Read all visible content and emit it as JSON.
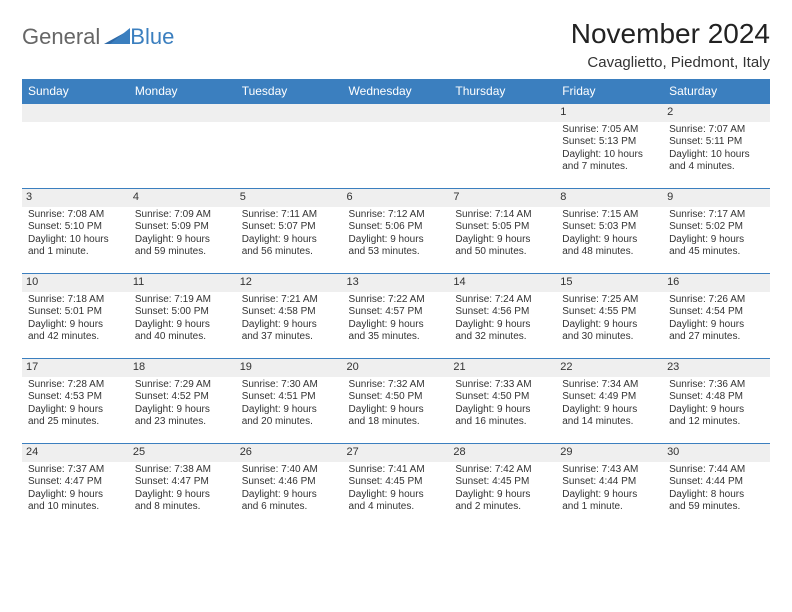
{
  "logo": {
    "text_general": "General",
    "text_blue": "Blue"
  },
  "header": {
    "title": "November 2024",
    "location": "Cavaglietto, Piedmont, Italy"
  },
  "colors": {
    "header_bg": "#3b7fbf",
    "header_text": "#ffffff",
    "daynum_bg": "#efefef",
    "border": "#3b7fbf",
    "text": "#333333",
    "page_bg": "#ffffff"
  },
  "weekdays": [
    "Sunday",
    "Monday",
    "Tuesday",
    "Wednesday",
    "Thursday",
    "Friday",
    "Saturday"
  ],
  "weeks": [
    [
      null,
      null,
      null,
      null,
      null,
      {
        "day": "1",
        "sunrise": "Sunrise: 7:05 AM",
        "sunset": "Sunset: 5:13 PM",
        "daylight1": "Daylight: 10 hours",
        "daylight2": "and 7 minutes."
      },
      {
        "day": "2",
        "sunrise": "Sunrise: 7:07 AM",
        "sunset": "Sunset: 5:11 PM",
        "daylight1": "Daylight: 10 hours",
        "daylight2": "and 4 minutes."
      }
    ],
    [
      {
        "day": "3",
        "sunrise": "Sunrise: 7:08 AM",
        "sunset": "Sunset: 5:10 PM",
        "daylight1": "Daylight: 10 hours",
        "daylight2": "and 1 minute."
      },
      {
        "day": "4",
        "sunrise": "Sunrise: 7:09 AM",
        "sunset": "Sunset: 5:09 PM",
        "daylight1": "Daylight: 9 hours",
        "daylight2": "and 59 minutes."
      },
      {
        "day": "5",
        "sunrise": "Sunrise: 7:11 AM",
        "sunset": "Sunset: 5:07 PM",
        "daylight1": "Daylight: 9 hours",
        "daylight2": "and 56 minutes."
      },
      {
        "day": "6",
        "sunrise": "Sunrise: 7:12 AM",
        "sunset": "Sunset: 5:06 PM",
        "daylight1": "Daylight: 9 hours",
        "daylight2": "and 53 minutes."
      },
      {
        "day": "7",
        "sunrise": "Sunrise: 7:14 AM",
        "sunset": "Sunset: 5:05 PM",
        "daylight1": "Daylight: 9 hours",
        "daylight2": "and 50 minutes."
      },
      {
        "day": "8",
        "sunrise": "Sunrise: 7:15 AM",
        "sunset": "Sunset: 5:03 PM",
        "daylight1": "Daylight: 9 hours",
        "daylight2": "and 48 minutes."
      },
      {
        "day": "9",
        "sunrise": "Sunrise: 7:17 AM",
        "sunset": "Sunset: 5:02 PM",
        "daylight1": "Daylight: 9 hours",
        "daylight2": "and 45 minutes."
      }
    ],
    [
      {
        "day": "10",
        "sunrise": "Sunrise: 7:18 AM",
        "sunset": "Sunset: 5:01 PM",
        "daylight1": "Daylight: 9 hours",
        "daylight2": "and 42 minutes."
      },
      {
        "day": "11",
        "sunrise": "Sunrise: 7:19 AM",
        "sunset": "Sunset: 5:00 PM",
        "daylight1": "Daylight: 9 hours",
        "daylight2": "and 40 minutes."
      },
      {
        "day": "12",
        "sunrise": "Sunrise: 7:21 AM",
        "sunset": "Sunset: 4:58 PM",
        "daylight1": "Daylight: 9 hours",
        "daylight2": "and 37 minutes."
      },
      {
        "day": "13",
        "sunrise": "Sunrise: 7:22 AM",
        "sunset": "Sunset: 4:57 PM",
        "daylight1": "Daylight: 9 hours",
        "daylight2": "and 35 minutes."
      },
      {
        "day": "14",
        "sunrise": "Sunrise: 7:24 AM",
        "sunset": "Sunset: 4:56 PM",
        "daylight1": "Daylight: 9 hours",
        "daylight2": "and 32 minutes."
      },
      {
        "day": "15",
        "sunrise": "Sunrise: 7:25 AM",
        "sunset": "Sunset: 4:55 PM",
        "daylight1": "Daylight: 9 hours",
        "daylight2": "and 30 minutes."
      },
      {
        "day": "16",
        "sunrise": "Sunrise: 7:26 AM",
        "sunset": "Sunset: 4:54 PM",
        "daylight1": "Daylight: 9 hours",
        "daylight2": "and 27 minutes."
      }
    ],
    [
      {
        "day": "17",
        "sunrise": "Sunrise: 7:28 AM",
        "sunset": "Sunset: 4:53 PM",
        "daylight1": "Daylight: 9 hours",
        "daylight2": "and 25 minutes."
      },
      {
        "day": "18",
        "sunrise": "Sunrise: 7:29 AM",
        "sunset": "Sunset: 4:52 PM",
        "daylight1": "Daylight: 9 hours",
        "daylight2": "and 23 minutes."
      },
      {
        "day": "19",
        "sunrise": "Sunrise: 7:30 AM",
        "sunset": "Sunset: 4:51 PM",
        "daylight1": "Daylight: 9 hours",
        "daylight2": "and 20 minutes."
      },
      {
        "day": "20",
        "sunrise": "Sunrise: 7:32 AM",
        "sunset": "Sunset: 4:50 PM",
        "daylight1": "Daylight: 9 hours",
        "daylight2": "and 18 minutes."
      },
      {
        "day": "21",
        "sunrise": "Sunrise: 7:33 AM",
        "sunset": "Sunset: 4:50 PM",
        "daylight1": "Daylight: 9 hours",
        "daylight2": "and 16 minutes."
      },
      {
        "day": "22",
        "sunrise": "Sunrise: 7:34 AM",
        "sunset": "Sunset: 4:49 PM",
        "daylight1": "Daylight: 9 hours",
        "daylight2": "and 14 minutes."
      },
      {
        "day": "23",
        "sunrise": "Sunrise: 7:36 AM",
        "sunset": "Sunset: 4:48 PM",
        "daylight1": "Daylight: 9 hours",
        "daylight2": "and 12 minutes."
      }
    ],
    [
      {
        "day": "24",
        "sunrise": "Sunrise: 7:37 AM",
        "sunset": "Sunset: 4:47 PM",
        "daylight1": "Daylight: 9 hours",
        "daylight2": "and 10 minutes."
      },
      {
        "day": "25",
        "sunrise": "Sunrise: 7:38 AM",
        "sunset": "Sunset: 4:47 PM",
        "daylight1": "Daylight: 9 hours",
        "daylight2": "and 8 minutes."
      },
      {
        "day": "26",
        "sunrise": "Sunrise: 7:40 AM",
        "sunset": "Sunset: 4:46 PM",
        "daylight1": "Daylight: 9 hours",
        "daylight2": "and 6 minutes."
      },
      {
        "day": "27",
        "sunrise": "Sunrise: 7:41 AM",
        "sunset": "Sunset: 4:45 PM",
        "daylight1": "Daylight: 9 hours",
        "daylight2": "and 4 minutes."
      },
      {
        "day": "28",
        "sunrise": "Sunrise: 7:42 AM",
        "sunset": "Sunset: 4:45 PM",
        "daylight1": "Daylight: 9 hours",
        "daylight2": "and 2 minutes."
      },
      {
        "day": "29",
        "sunrise": "Sunrise: 7:43 AM",
        "sunset": "Sunset: 4:44 PM",
        "daylight1": "Daylight: 9 hours",
        "daylight2": "and 1 minute."
      },
      {
        "day": "30",
        "sunrise": "Sunrise: 7:44 AM",
        "sunset": "Sunset: 4:44 PM",
        "daylight1": "Daylight: 8 hours",
        "daylight2": "and 59 minutes."
      }
    ]
  ]
}
